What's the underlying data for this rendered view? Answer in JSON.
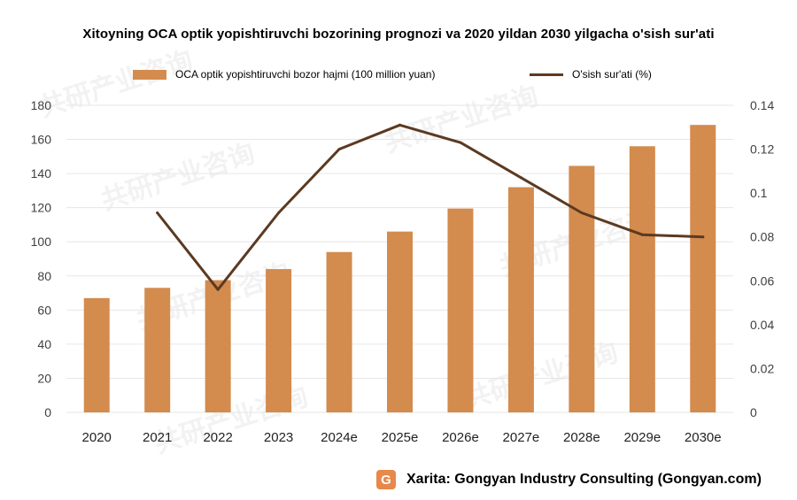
{
  "title": "Xitoyning OCA optik yopishtiruvchi bozorining prognozi va 2020 yildan 2030 yilgacha o'sish sur'ati",
  "source": "Xarita: Gongyan Industry Consulting (Gongyan.com)",
  "watermark": "共研产业咨询",
  "colors": {
    "bar": "#D38B4E",
    "line": "#5B3A21",
    "grid": "#e6e6e6",
    "axis_text": "#404040"
  },
  "chart_data": {
    "type": "bar",
    "categories": [
      "2020",
      "2021",
      "2022",
      "2023",
      "2024e",
      "2025e",
      "2026e",
      "2027e",
      "2028e",
      "2029e",
      "2030e"
    ],
    "series": [
      {
        "name": "OCA optik yopishtiruvchi bozor hajmi (100 million yuan)",
        "type": "bar",
        "axis": "left",
        "values": [
          67,
          73,
          77.5,
          84,
          94,
          106,
          119.5,
          132,
          144.5,
          156,
          168.5
        ]
      },
      {
        "name": "O'sish sur'ati (%)",
        "type": "line",
        "axis": "right",
        "values": [
          null,
          0.091,
          0.056,
          0.091,
          0.12,
          0.131,
          0.123,
          0.107,
          0.091,
          0.081,
          0.08
        ]
      }
    ],
    "y_left": {
      "min": 0,
      "max": 180,
      "ticks": [
        0,
        20,
        40,
        60,
        80,
        100,
        120,
        140,
        160,
        180
      ]
    },
    "y_right": {
      "min": 0,
      "max": 0.14,
      "ticks": [
        "0",
        "0.02",
        "0.04",
        "0.06",
        "0.08",
        "0.1",
        "0.12",
        "0.14"
      ]
    },
    "grid": true,
    "legend": "top"
  }
}
